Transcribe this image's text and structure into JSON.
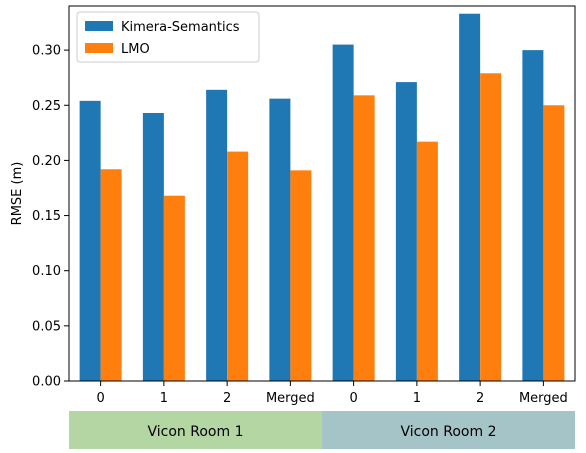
{
  "chart_data": {
    "type": "bar",
    "categories": [
      "0",
      "1",
      "2",
      "Merged",
      "0",
      "1",
      "2",
      "Merged"
    ],
    "series": [
      {
        "name": "Kimera-Semantics",
        "color": "#1f77b4",
        "values": [
          0.254,
          0.243,
          0.264,
          0.256,
          0.305,
          0.271,
          0.333,
          0.3
        ]
      },
      {
        "name": "LMO",
        "color": "#ff7f0e",
        "values": [
          0.192,
          0.168,
          0.208,
          0.191,
          0.259,
          0.217,
          0.279,
          0.25
        ]
      }
    ],
    "groups": [
      {
        "label": "Vicon Room 1",
        "color": "#b3d6a3",
        "span": [
          0,
          3
        ]
      },
      {
        "label": "Vicon Room 2",
        "color": "#a5c4c8",
        "span": [
          4,
          7
        ]
      }
    ],
    "title": "",
    "xlabel": "",
    "ylabel": "RMSE (m)",
    "ylim": [
      0,
      0.34
    ],
    "yticks": [
      0.0,
      0.05,
      0.1,
      0.15,
      0.2,
      0.25,
      0.3
    ],
    "ytick_labels": [
      "0.00",
      "0.05",
      "0.10",
      "0.15",
      "0.20",
      "0.25",
      "0.30"
    ],
    "grid": false,
    "legend_position": "top-left"
  }
}
